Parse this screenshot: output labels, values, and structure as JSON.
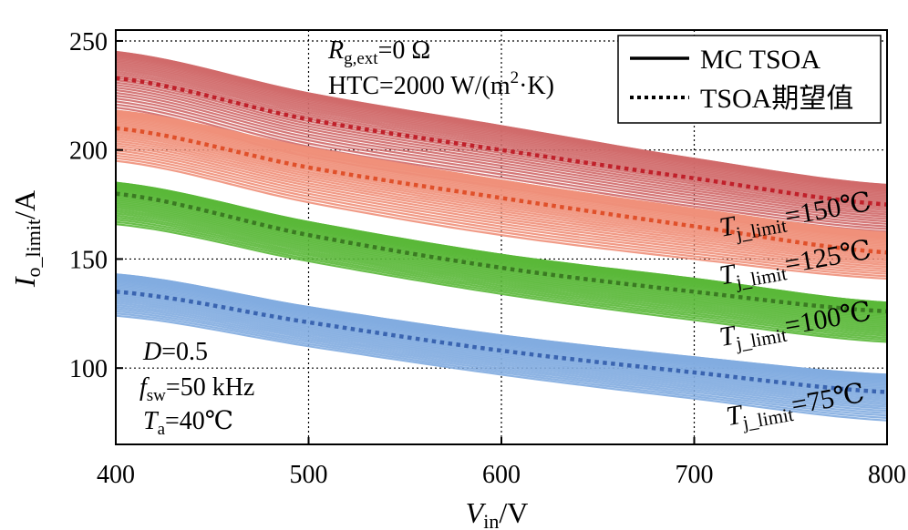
{
  "chart_data": {
    "type": "line",
    "xlabel": {
      "main": "V",
      "sub": "in",
      "unit": "/V"
    },
    "ylabel": {
      "main": "I",
      "sub": "o_limit",
      "unit": "/A"
    },
    "xlim": [
      400,
      800
    ],
    "ylim": [
      65,
      255
    ],
    "x_ticks": [
      400,
      500,
      600,
      700,
      800
    ],
    "y_ticks": [
      100,
      150,
      200,
      250
    ],
    "grid": "dotted vertical at x ticks, dotted horizontal at y ticks (behind data)",
    "legend": {
      "placement": "top-right",
      "entries": [
        {
          "label": "MC TSOA",
          "style": "solid"
        },
        {
          "label": "TSOA期望值",
          "style": "dotted"
        }
      ]
    },
    "annotations": {
      "top_left": [
        {
          "main": "R",
          "sub": "g,ext",
          "rest": "=0 Ω"
        },
        {
          "main": "HTC=2000 W/(m",
          "sup": "2",
          "rest": "·K)"
        }
      ],
      "bottom_left": [
        {
          "main": "D",
          "rest": "=0.5"
        },
        {
          "main": "f",
          "sub": "sw",
          "rest": "=50 kHz"
        },
        {
          "main": "T",
          "sub": "a",
          "rest": "=40℃"
        }
      ]
    },
    "series": [
      {
        "name_main": "T",
        "name_sub": "j_limit",
        "name_rest": "=150℃",
        "color": "#d06a6a",
        "expected_color": "#c0202a",
        "x": [
          400,
          500,
          600,
          700,
          800
        ],
        "mc_upper": [
          245,
          226,
          211,
          196,
          184
        ],
        "mc_lower": [
          218,
          197,
          183,
          170,
          160
        ],
        "expected": [
          233,
          214,
          200,
          187,
          175
        ]
      },
      {
        "name_main": "T",
        "name_sub": "j_limit",
        "name_rest": "=125℃",
        "color": "#f0907a",
        "expected_color": "#e0502a",
        "x": [
          400,
          500,
          600,
          700,
          800
        ],
        "mc_upper": [
          218,
          201,
          186,
          173,
          162
        ],
        "mc_lower": [
          195,
          176,
          161,
          150,
          141
        ],
        "expected": [
          210,
          192,
          178,
          165,
          153
        ]
      },
      {
        "name_main": "T",
        "name_sub": "j_limit",
        "name_rest": "=100℃",
        "color": "#5ab838",
        "expected_color": "#3a7a22",
        "x": [
          400,
          500,
          600,
          700,
          800
        ],
        "mc_upper": [
          185,
          167,
          152,
          141,
          130
        ],
        "mc_lower": [
          166,
          149,
          134,
          122,
          112
        ],
        "expected": [
          180,
          161,
          146,
          135,
          126
        ]
      },
      {
        "name_main": "T",
        "name_sub": "j_limit",
        "name_rest": "=75℃",
        "color": "#82ace0",
        "expected_color": "#3a64b0",
        "x": [
          400,
          500,
          600,
          700,
          800
        ],
        "mc_upper": [
          143,
          128,
          115,
          105,
          97
        ],
        "mc_lower": [
          124,
          110,
          97,
          86,
          76
        ],
        "expected": [
          135,
          121,
          108,
          98,
          89
        ]
      }
    ]
  }
}
